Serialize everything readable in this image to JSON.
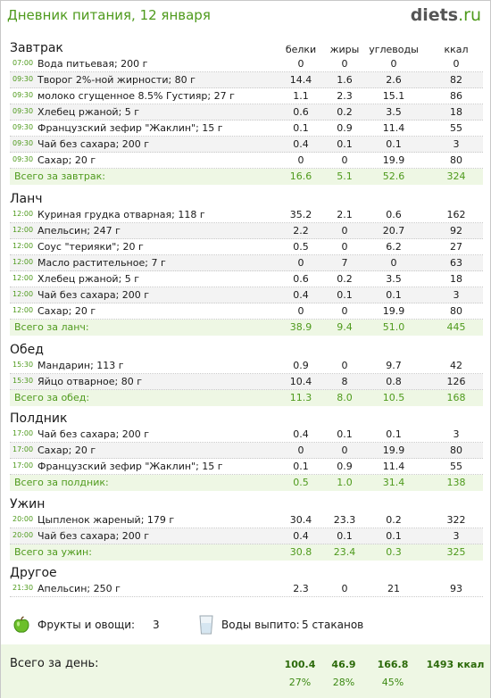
{
  "header": {
    "title": "Дневник питания, 12 января",
    "logo_main": "diets",
    "logo_tld": ".ru"
  },
  "columns": [
    "белки",
    "жиры",
    "углеводы",
    "ккал"
  ],
  "meals": [
    {
      "title": "Завтрак",
      "total_label": "Всего за завтрак:",
      "total": [
        "16.6",
        "5.1",
        "52.6",
        "324"
      ],
      "items": [
        {
          "time": "07:00",
          "name": "Вода питьевая; 200 г",
          "values": [
            "0",
            "0",
            "0",
            "0"
          ]
        },
        {
          "time": "09:30",
          "name": "Творог 2%-ной жирности; 80 г",
          "values": [
            "14.4",
            "1.6",
            "2.6",
            "82"
          ]
        },
        {
          "time": "09:30",
          "name": "молоко сгущенное 8.5% Густияр; 27 г",
          "values": [
            "1.1",
            "2.3",
            "15.1",
            "86"
          ]
        },
        {
          "time": "09:30",
          "name": "Хлебец ржаной; 5 г",
          "values": [
            "0.6",
            "0.2",
            "3.5",
            "18"
          ]
        },
        {
          "time": "09:30",
          "name": "Французский зефир \"Жаклин\"; 15 г",
          "values": [
            "0.1",
            "0.9",
            "11.4",
            "55"
          ]
        },
        {
          "time": "09:30",
          "name": "Чай без сахара; 200 г",
          "values": [
            "0.4",
            "0.1",
            "0.1",
            "3"
          ]
        },
        {
          "time": "09:30",
          "name": "Сахар; 20 г",
          "values": [
            "0",
            "0",
            "19.9",
            "80"
          ]
        }
      ]
    },
    {
      "title": "Ланч",
      "total_label": "Всего за ланч:",
      "total": [
        "38.9",
        "9.4",
        "51.0",
        "445"
      ],
      "items": [
        {
          "time": "12:00",
          "name": "Куриная грудка отварная; 118 г",
          "values": [
            "35.2",
            "2.1",
            "0.6",
            "162"
          ]
        },
        {
          "time": "12:00",
          "name": "Апельсин; 247 г",
          "values": [
            "2.2",
            "0",
            "20.7",
            "92"
          ]
        },
        {
          "time": "12:00",
          "name": "Соус \"терияки\"; 20 г",
          "values": [
            "0.5",
            "0",
            "6.2",
            "27"
          ]
        },
        {
          "time": "12:00",
          "name": "Масло растительное; 7 г",
          "values": [
            "0",
            "7",
            "0",
            "63"
          ]
        },
        {
          "time": "12:00",
          "name": "Хлебец ржаной; 5 г",
          "values": [
            "0.6",
            "0.2",
            "3.5",
            "18"
          ]
        },
        {
          "time": "12:00",
          "name": "Чай без сахара; 200 г",
          "values": [
            "0.4",
            "0.1",
            "0.1",
            "3"
          ]
        },
        {
          "time": "12:00",
          "name": "Сахар; 20 г",
          "values": [
            "0",
            "0",
            "19.9",
            "80"
          ]
        }
      ]
    },
    {
      "title": "Обед",
      "total_label": "Всего за обед:",
      "total": [
        "11.3",
        "8.0",
        "10.5",
        "168"
      ],
      "items": [
        {
          "time": "15:30",
          "name": "Мандарин; 113 г",
          "values": [
            "0.9",
            "0",
            "9.7",
            "42"
          ]
        },
        {
          "time": "15:30",
          "name": "Яйцо отварное; 80 г",
          "values": [
            "10.4",
            "8",
            "0.8",
            "126"
          ]
        }
      ]
    },
    {
      "title": "Полдник",
      "total_label": "Всего за полдник:",
      "total": [
        "0.5",
        "1.0",
        "31.4",
        "138"
      ],
      "items": [
        {
          "time": "17:00",
          "name": "Чай без сахара; 200 г",
          "values": [
            "0.4",
            "0.1",
            "0.1",
            "3"
          ]
        },
        {
          "time": "17:00",
          "name": "Сахар; 20 г",
          "values": [
            "0",
            "0",
            "19.9",
            "80"
          ]
        },
        {
          "time": "17:00",
          "name": "Французский зефир \"Жаклин\"; 15 г",
          "values": [
            "0.1",
            "0.9",
            "11.4",
            "55"
          ]
        }
      ]
    },
    {
      "title": "Ужин",
      "total_label": "Всего за ужин:",
      "total": [
        "30.8",
        "23.4",
        "0.3",
        "325"
      ],
      "items": [
        {
          "time": "20:00",
          "name": "Цыпленок жареный; 179 г",
          "values": [
            "30.4",
            "23.3",
            "0.2",
            "322"
          ]
        },
        {
          "time": "20:00",
          "name": "Чай без сахара; 200 г",
          "values": [
            "0.4",
            "0.1",
            "0.1",
            "3"
          ]
        }
      ]
    },
    {
      "title": "Другое",
      "total_label": "",
      "total": null,
      "items": [
        {
          "time": "21:30",
          "name": "Апельсин; 250 г",
          "values": [
            "2.3",
            "0",
            "21",
            "93"
          ]
        }
      ]
    }
  ],
  "extras": {
    "fruits_label": "Фрукты и овощи:",
    "fruits_value": "3",
    "water_label": "Воды выпито:",
    "water_value": "5 стаканов",
    "apple_icon": "green-apple-icon",
    "glass_icon": "water-glass-icon"
  },
  "day_total": {
    "label": "Всего за день:",
    "protein": "100.4",
    "fat": "46.9",
    "carbs": "166.8",
    "kcal": "1493 ккал",
    "protein_pct": "27%",
    "fat_pct": "28%",
    "carbs_pct": "45%"
  }
}
